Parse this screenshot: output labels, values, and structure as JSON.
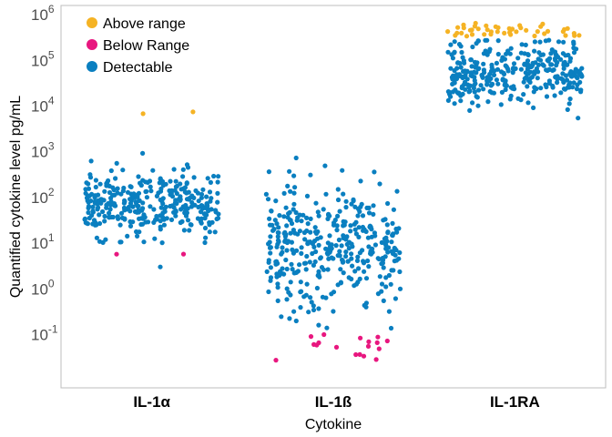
{
  "chart_data": {
    "type": "scatter",
    "subtype": "jitter-strip",
    "title": "",
    "xlabel": "Cytokine",
    "ylabel": "Quantified cytokine level pg/mL",
    "categories": [
      "IL-1α",
      "IL-1ß",
      "IL-1RA"
    ],
    "y_scale": "log10",
    "ylim": [
      0.0068,
      1600000
    ],
    "y_ticks": [
      {
        "value": 0.1,
        "label": "10",
        "exp": "-1"
      },
      {
        "value": 1,
        "label": "10",
        "exp": "0"
      },
      {
        "value": 10,
        "label": "10",
        "exp": "1"
      },
      {
        "value": 100,
        "label": "10",
        "exp": "2"
      },
      {
        "value": 1000,
        "label": "10",
        "exp": "3"
      },
      {
        "value": 10000,
        "label": "10",
        "exp": "4"
      },
      {
        "value": 100000,
        "label": "10",
        "exp": "5"
      },
      {
        "value": 1000000,
        "label": "10",
        "exp": "6"
      }
    ],
    "grid": false,
    "legend_position": "top-left",
    "series": [
      {
        "name": "Above range",
        "color": "#F5B324"
      },
      {
        "name": "Below Range",
        "color": "#E8177F"
      },
      {
        "name": "Detectable",
        "color": "#0A7FC0"
      }
    ],
    "distributions": [
      {
        "category": "IL-1α",
        "series": "Detectable",
        "n": 330,
        "log10_center": 1.85,
        "log10_spread": 0.38,
        "log10_min": 1.0,
        "log10_max": 3.55
      },
      {
        "category": "IL-1α",
        "series": "Detectable",
        "n": 1,
        "log10_center": 0.48,
        "log10_spread": 0,
        "log10_min": 0.48,
        "log10_max": 0.48
      },
      {
        "category": "IL-1α",
        "series": "Below Range",
        "n": 2,
        "log10_center": 0.75,
        "log10_spread": 0.03,
        "log10_min": 0.72,
        "log10_max": 0.78
      },
      {
        "category": "IL-1α",
        "series": "Above range",
        "n": 2,
        "log10_center": 3.85,
        "log10_spread": 0.02,
        "log10_min": 3.82,
        "log10_max": 3.88
      },
      {
        "category": "IL-1ß",
        "series": "Detectable",
        "n": 380,
        "log10_center": 0.9,
        "log10_spread": 0.7,
        "log10_min": -0.87,
        "log10_max": 2.9
      },
      {
        "category": "IL-1ß",
        "series": "Below Range",
        "n": 18,
        "log10_center": -1.3,
        "log10_spread": 0.2,
        "log10_min": -1.8,
        "log10_max": -1.0
      },
      {
        "category": "IL-1RA",
        "series": "Detectable",
        "n": 330,
        "log10_center": 4.75,
        "log10_spread": 0.35,
        "log10_min": 3.55,
        "log10_max": 5.45
      },
      {
        "category": "IL-1RA",
        "series": "Above range",
        "n": 45,
        "log10_center": 5.65,
        "log10_spread": 0.08,
        "log10_min": 5.5,
        "log10_max": 5.9
      }
    ]
  }
}
